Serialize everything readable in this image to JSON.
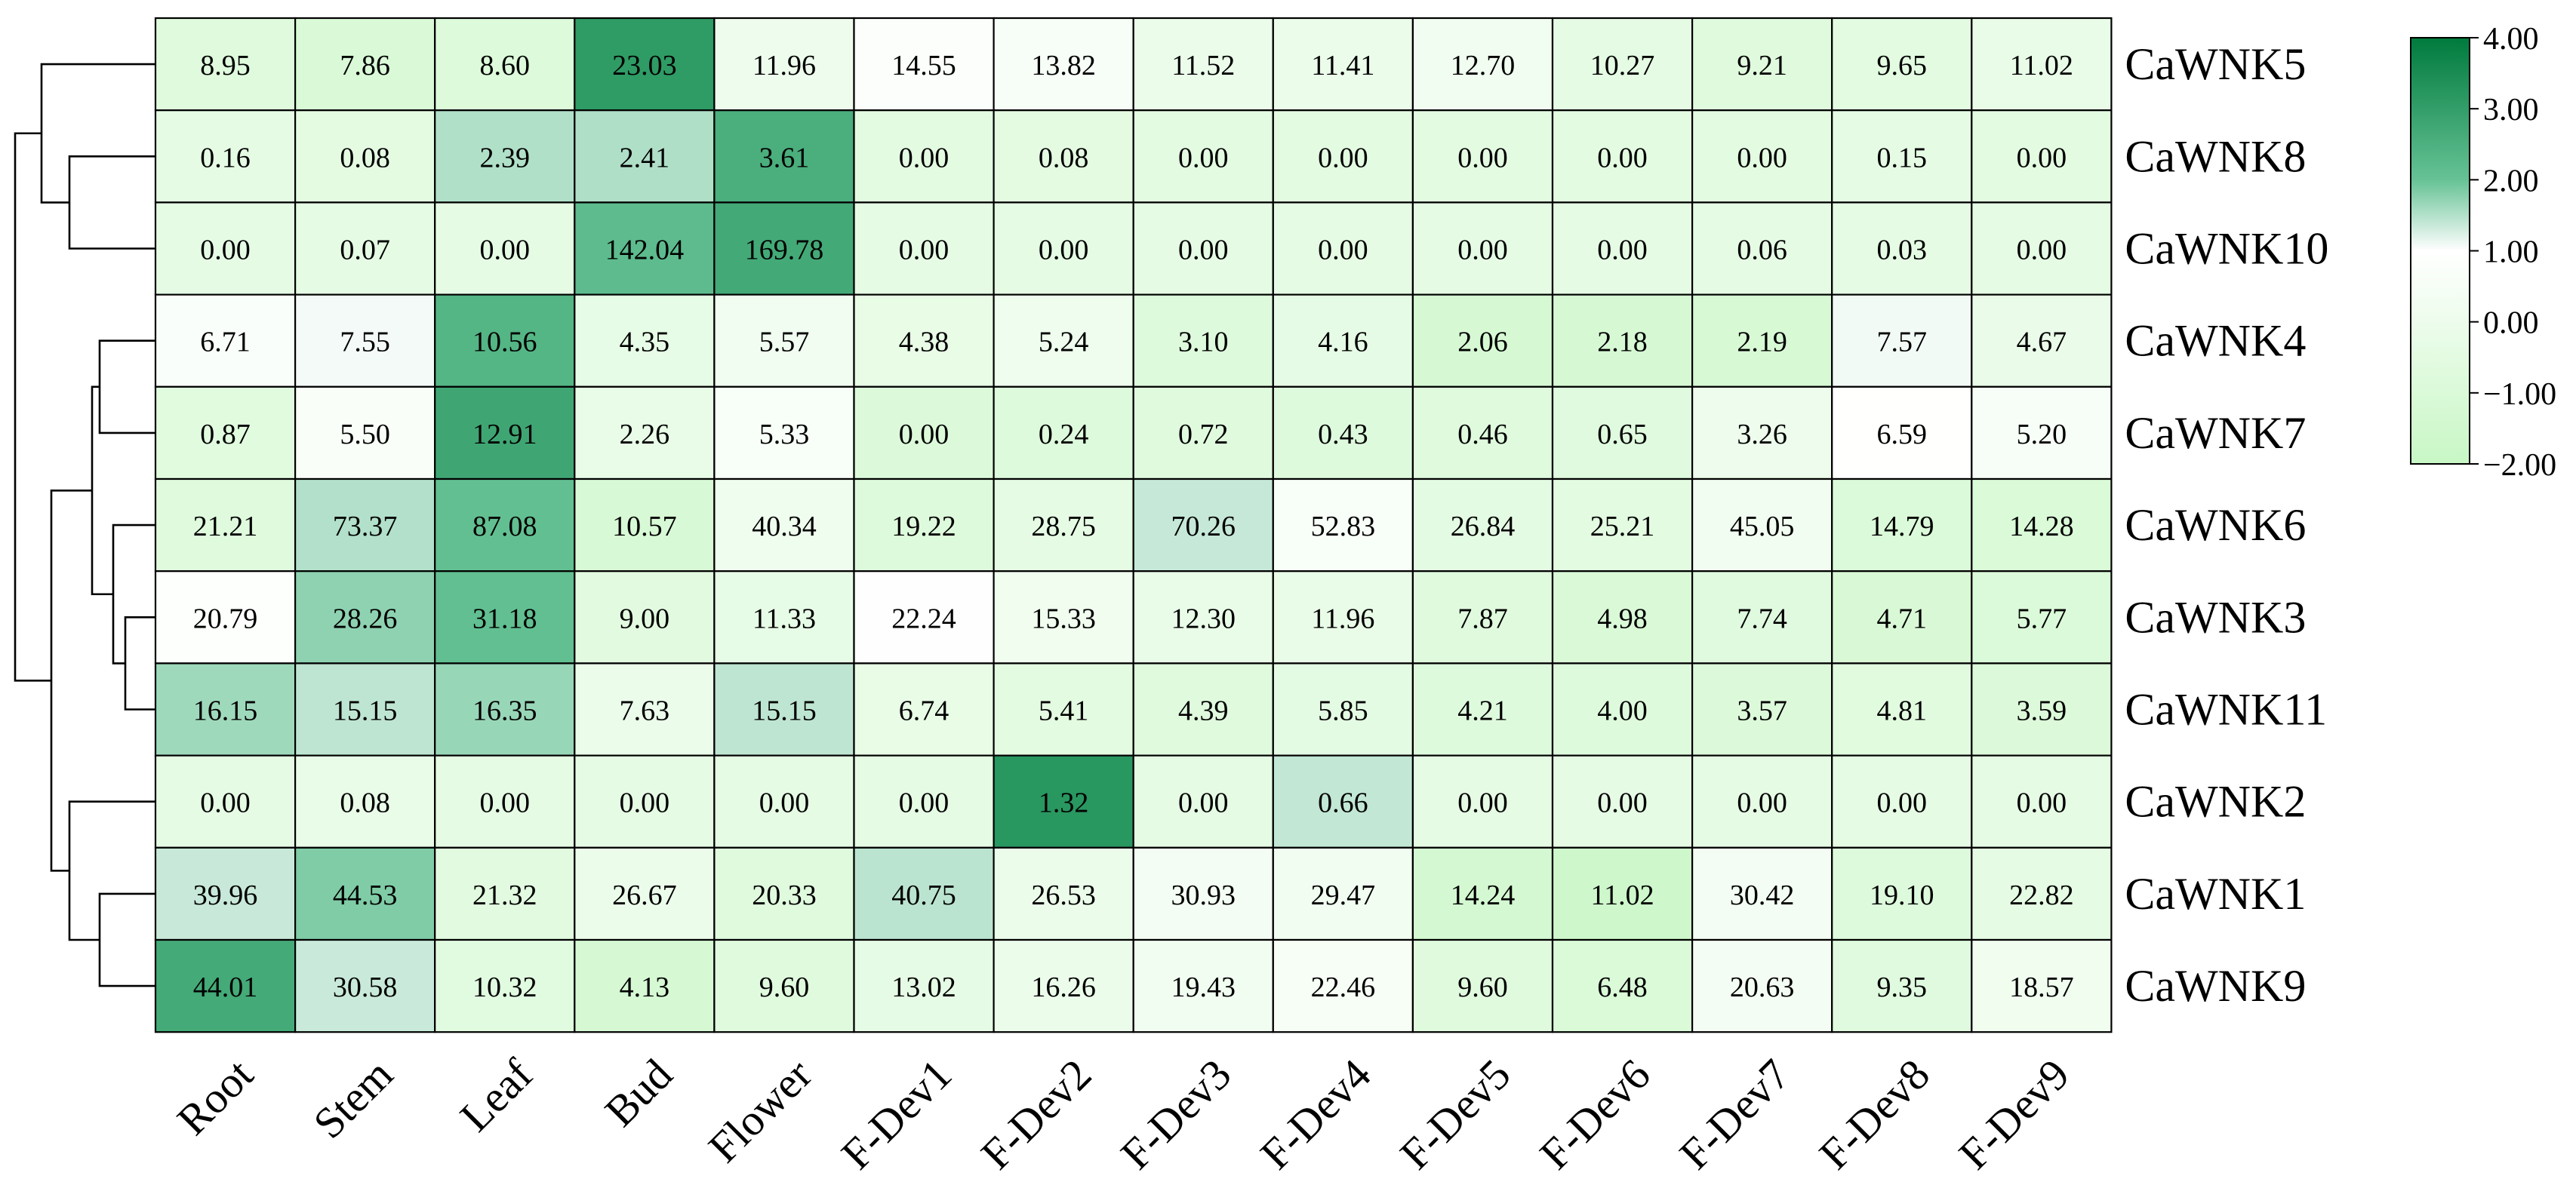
{
  "chart_data": {
    "type": "heatmap",
    "title": "",
    "xlabel": "",
    "ylabel": "",
    "x": [
      "Root",
      "Stem",
      "Leaf",
      "Bud",
      "Flower",
      "F-Dev1",
      "F-Dev2",
      "F-Dev3",
      "F-Dev4",
      "F-Dev5",
      "F-Dev6",
      "F-Dev7",
      "F-Dev8",
      "F-Dev9"
    ],
    "y": [
      "CaWNK5",
      "CaWNK8",
      "CaWNK10",
      "CaWNK4",
      "CaWNK7",
      "CaWNK6",
      "CaWNK3",
      "CaWNK11",
      "CaWNK2",
      "CaWNK1",
      "CaWNK9"
    ],
    "values": [
      [
        "8.95",
        "7.86",
        "8.60",
        "23.03",
        "11.96",
        "14.55",
        "13.82",
        "11.52",
        "11.41",
        "12.70",
        "10.27",
        "9.21",
        "9.65",
        "11.02"
      ],
      [
        "0.16",
        "0.08",
        "2.39",
        "2.41",
        "3.61",
        "0.00",
        "0.08",
        "0.00",
        "0.00",
        "0.00",
        "0.00",
        "0.00",
        "0.15",
        "0.00"
      ],
      [
        "0.00",
        "0.07",
        "0.00",
        "142.04",
        "169.78",
        "0.00",
        "0.00",
        "0.00",
        "0.00",
        "0.00",
        "0.00",
        "0.06",
        "0.03",
        "0.00"
      ],
      [
        "6.71",
        "7.55",
        "10.56",
        "4.35",
        "5.57",
        "4.38",
        "5.24",
        "3.10",
        "4.16",
        "2.06",
        "2.18",
        "2.19",
        "7.57",
        "4.67"
      ],
      [
        "0.87",
        "5.50",
        "12.91",
        "2.26",
        "5.33",
        "0.00",
        "0.24",
        "0.72",
        "0.43",
        "0.46",
        "0.65",
        "3.26",
        "6.59",
        "5.20"
      ],
      [
        "21.21",
        "73.37",
        "87.08",
        "10.57",
        "40.34",
        "19.22",
        "28.75",
        "70.26",
        "52.83",
        "26.84",
        "25.21",
        "45.05",
        "14.79",
        "14.28"
      ],
      [
        "20.79",
        "28.26",
        "31.18",
        "9.00",
        "11.33",
        "22.24",
        "15.33",
        "12.30",
        "11.96",
        "7.87",
        "4.98",
        "7.74",
        "4.71",
        "5.77"
      ],
      [
        "16.15",
        "15.15",
        "16.35",
        "7.63",
        "15.15",
        "6.74",
        "5.41",
        "4.39",
        "5.85",
        "4.21",
        "4.00",
        "3.57",
        "4.81",
        "3.59"
      ],
      [
        "0.00",
        "0.08",
        "0.00",
        "0.00",
        "0.00",
        "0.00",
        "1.32",
        "0.00",
        "0.66",
        "0.00",
        "0.00",
        "0.00",
        "0.00",
        "0.00"
      ],
      [
        "39.96",
        "44.53",
        "21.32",
        "26.67",
        "20.33",
        "40.75",
        "26.53",
        "30.93",
        "29.47",
        "14.24",
        "11.02",
        "30.42",
        "19.10",
        "22.82"
      ],
      [
        "44.01",
        "30.58",
        "10.32",
        "4.13",
        "9.60",
        "13.02",
        "16.26",
        "19.43",
        "22.46",
        "9.60",
        "6.48",
        "20.63",
        "9.35",
        "18.57"
      ]
    ],
    "color_scale": {
      "min": -2.0,
      "max": 4.0,
      "ticks": [
        "4.00",
        "3.00",
        "2.00",
        "1.00",
        "0.00",
        "−1.00",
        "−2.00"
      ],
      "colors": {
        "high": "#007a3d",
        "mid": "#ffffff",
        "low": "#c8f7c5"
      }
    },
    "row_dendrogram": true,
    "legend_placement": "right"
  }
}
